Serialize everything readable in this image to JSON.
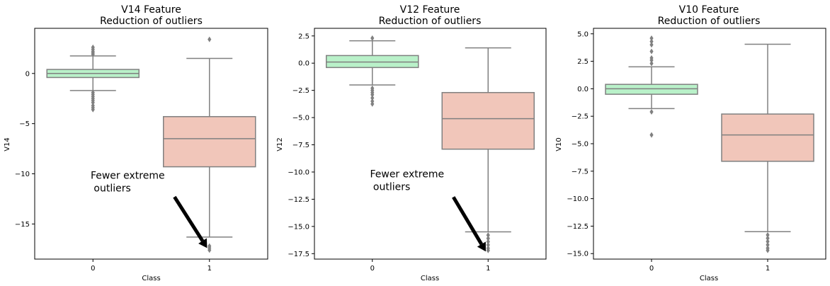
{
  "chart_data": [
    {
      "type": "box",
      "title_line1": "V14 Feature",
      "title_line2": "Reduction of outliers",
      "xlabel": "Class",
      "ylabel": "V14",
      "categories": [
        "0",
        "1"
      ],
      "ylim": [
        -18.5,
        4.5
      ],
      "yticks": [
        -15,
        -10,
        -5,
        0
      ],
      "ytick_labels": [
        "−15",
        "−10",
        "−5",
        "0"
      ],
      "boxes": [
        {
          "category": "0",
          "q1": -0.4,
          "median": 0.0,
          "q3": 0.4,
          "whisker_low": -1.7,
          "whisker_high": 1.75,
          "fliers": [
            1.9,
            2.05,
            2.2,
            2.4,
            2.6,
            -1.9,
            -2.1,
            -2.3,
            -2.5,
            -2.7,
            -2.9,
            -3.2,
            -3.4,
            -3.6
          ]
        },
        {
          "category": "1",
          "q1": -9.3,
          "median": -6.5,
          "q3": -4.3,
          "whisker_low": -16.3,
          "whisker_high": 1.5,
          "fliers": [
            3.4,
            -17.2,
            -17.4,
            -17.6
          ]
        }
      ],
      "annotation": {
        "line1": "Fewer extreme",
        "line2": " outliers",
        "text_xy": [
          -0.02,
          -10.5
        ],
        "arrow_from": [
          0.7,
          -12.3
        ],
        "arrow_to": [
          0.98,
          -17.4
        ]
      }
    },
    {
      "type": "box",
      "title_line1": "V12 Feature",
      "title_line2": "Reduction of outliers",
      "xlabel": "Class",
      "ylabel": "V12",
      "categories": [
        "0",
        "1"
      ],
      "ylim": [
        -18,
        3.2
      ],
      "yticks": [
        -17.5,
        -15,
        -12.5,
        -10,
        -7.5,
        -5,
        -2.5,
        0,
        2.5
      ],
      "ytick_labels": [
        "−17.5",
        "−15.0",
        "−12.5",
        "−10.0",
        "−7.5",
        "−5.0",
        "−2.5",
        "0.0",
        "2.5"
      ],
      "boxes": [
        {
          "category": "0",
          "q1": -0.4,
          "median": 0.1,
          "q3": 0.7,
          "whisker_low": -2.0,
          "whisker_high": 2.05,
          "fliers": [
            2.3,
            -2.3,
            -2.5,
            -2.7,
            -2.9,
            -3.2,
            -3.5,
            -3.75
          ]
        },
        {
          "category": "1",
          "q1": -7.9,
          "median": -5.1,
          "q3": -2.7,
          "whisker_low": -15.5,
          "whisker_high": 1.4,
          "fliers": [
            -15.8,
            -16.1,
            -16.4,
            -16.7,
            -17.0,
            -17.2
          ]
        }
      ],
      "annotation": {
        "line1": "Fewer extreme",
        "line2": " outliers",
        "text_xy": [
          -0.02,
          -10.5
        ],
        "arrow_from": [
          0.7,
          -12.3
        ],
        "arrow_to": [
          0.98,
          -17.3
        ]
      }
    },
    {
      "type": "box",
      "title_line1": "V10 Feature",
      "title_line2": "Reduction of outliers",
      "xlabel": "Class",
      "ylabel": "V10",
      "categories": [
        "0",
        "1"
      ],
      "ylim": [
        -15.5,
        5.5
      ],
      "yticks": [
        -15,
        -12.5,
        -10,
        -7.5,
        -5,
        -2.5,
        0,
        2.5,
        5
      ],
      "ytick_labels": [
        "−15.0",
        "−12.5",
        "−10.0",
        "−7.5",
        "−5.0",
        "−2.5",
        "0.0",
        "2.5",
        "5.0"
      ],
      "boxes": [
        {
          "category": "0",
          "q1": -0.5,
          "median": 0.0,
          "q3": 0.4,
          "whisker_low": -1.8,
          "whisker_high": 2.0,
          "fliers": [
            2.3,
            2.6,
            2.8,
            3.4,
            4.0,
            4.3,
            4.6,
            -2.1,
            -4.2
          ]
        },
        {
          "category": "1",
          "q1": -6.6,
          "median": -4.2,
          "q3": -2.3,
          "whisker_low": -13.0,
          "whisker_high": 4.05,
          "fliers": [
            -13.3,
            -13.6,
            -13.9,
            -14.2,
            -14.5,
            -14.7
          ]
        }
      ]
    }
  ],
  "colors": {
    "box_class0": "#b9f1c9",
    "box_class1": "#f1c6ba",
    "line": "#808080",
    "axis": "#000000"
  }
}
